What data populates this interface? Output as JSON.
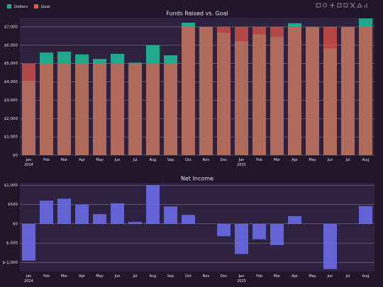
{
  "chart_data": [
    {
      "type": "bar",
      "title": "Funds Raised vs. Goal",
      "categories": [
        "Jan 2024",
        "Feb",
        "Mar",
        "Apr",
        "May",
        "Jun",
        "Jul",
        "Aug",
        "Sep",
        "Oct",
        "Nov",
        "Dec",
        "Jan 2025",
        "Feb",
        "Mar",
        "Apr",
        "May",
        "Jun",
        "Jul",
        "Aug"
      ],
      "series": [
        {
          "name": "Dollars",
          "color": "#1fa88a",
          "values": [
            4050,
            5600,
            5650,
            5500,
            5250,
            5530,
            5050,
            6000,
            5450,
            7230,
            7000,
            6680,
            6220,
            6600,
            6450,
            7200,
            7000,
            5830,
            7000,
            7460
          ]
        },
        {
          "name": "Goal",
          "color": "#e0564a",
          "values": [
            5000,
            5000,
            5000,
            5000,
            5000,
            5000,
            5000,
            5000,
            5000,
            7000,
            7000,
            7000,
            7000,
            7000,
            7000,
            7000,
            7000,
            7000,
            7000,
            7000
          ]
        }
      ],
      "ylim": [
        0,
        7500
      ],
      "yticks": [
        {
          "value": 0,
          "label": "$0"
        },
        {
          "value": 1000,
          "label": "$1,000"
        },
        {
          "value": 2000,
          "label": "$2,000"
        },
        {
          "value": 3000,
          "label": "$3,000"
        },
        {
          "value": 4000,
          "label": "$4,000"
        },
        {
          "value": 5000,
          "label": "$5,000"
        },
        {
          "value": 6000,
          "label": "$6,000"
        },
        {
          "value": 7000,
          "label": "$7,000"
        }
      ],
      "grid": true,
      "legend": "top-left"
    },
    {
      "type": "bar",
      "title": "Net Income",
      "categories": [
        "Jan 2024",
        "Feb",
        "Mar",
        "Apr",
        "May",
        "Jun",
        "Jul",
        "Aug",
        "Sep",
        "Oct",
        "Nov",
        "Dec",
        "Jan 2025",
        "Feb",
        "Mar",
        "Apr",
        "May",
        "Jun",
        "Jul",
        "Aug"
      ],
      "values": [
        -950,
        600,
        650,
        500,
        250,
        530,
        50,
        1000,
        450,
        230,
        0,
        -320,
        -780,
        -400,
        -550,
        200,
        0,
        -1170,
        0,
        460
      ],
      "color": "#6a6ae6",
      "ylim": [
        -1230,
        1060
      ],
      "yticks": [
        {
          "value": -1000,
          "label": "$-1,000"
        },
        {
          "value": -500,
          "label": "$-500"
        },
        {
          "value": 0,
          "label": "$0"
        },
        {
          "value": 500,
          "label": "$500"
        },
        {
          "value": 1000,
          "label": "$1,000"
        }
      ],
      "grid": true
    }
  ]
}
